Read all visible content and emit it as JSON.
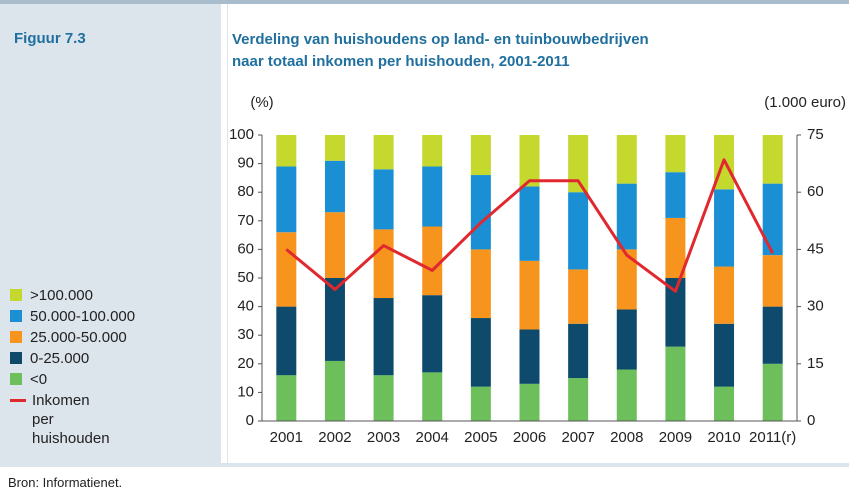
{
  "figure_label": "Figuur 7.3",
  "source": "Bron: Informatienet.",
  "chart_data": {
    "type": "stacked-bar-line",
    "title": [
      "Verdeling van huishoudens op land- en tuinbouwbedrijven",
      "naar totaal inkomen per huishouden, 2001-2011"
    ],
    "y_label": "(%)",
    "y2_label": "(1.000 euro)",
    "categories": [
      "2001",
      "2002",
      "2003",
      "2004",
      "2005",
      "2006",
      "2007",
      "2008",
      "2009",
      "2010",
      "2011(r)"
    ],
    "series": [
      {
        "name": "<0",
        "color": "#6cbf5b",
        "values": [
          16,
          21,
          16,
          17,
          12,
          13,
          15,
          18,
          26,
          12,
          20
        ]
      },
      {
        "name": "0-25.000",
        "color": "#0d4a6b",
        "values": [
          24,
          29,
          27,
          27,
          24,
          19,
          19,
          21,
          24,
          22,
          20
        ]
      },
      {
        "name": "25.000-50.000",
        "color": "#f7941d",
        "values": [
          26,
          23,
          24,
          24,
          24,
          24,
          19,
          21,
          21,
          20,
          18
        ]
      },
      {
        "name": "50.000-100.000",
        "color": "#1a8fd4",
        "values": [
          23,
          18,
          21,
          21,
          26,
          26,
          27,
          23,
          16,
          27,
          25
        ]
      },
      {
        "name": ">100.000",
        "color": "#c5d82e",
        "values": [
          11,
          9,
          12,
          11,
          14,
          18,
          20,
          17,
          13,
          19,
          17
        ]
      },
      {
        "name": "Inkomen per huishouden",
        "color": "#e0282e",
        "axis": "y2",
        "values": [
          45,
          34.5,
          46,
          39.5,
          52,
          63,
          63,
          43.5,
          34,
          68.5,
          44
        ]
      }
    ],
    "ylim": [
      0,
      100
    ],
    "yticks": [
      0,
      10,
      20,
      30,
      40,
      50,
      60,
      70,
      80,
      90,
      100
    ],
    "y2lim": [
      0,
      75
    ],
    "y2ticks": [
      0,
      15,
      30,
      45,
      60,
      75
    ],
    "grid": false
  }
}
